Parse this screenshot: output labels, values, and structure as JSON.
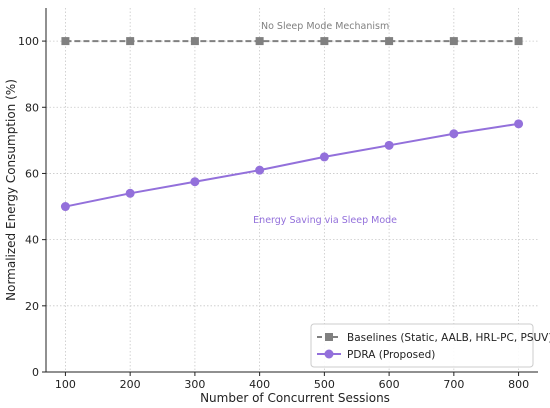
{
  "chart_data": {
    "type": "line",
    "title": "",
    "xlabel": "Number of Concurrent Sessions",
    "ylabel": "Normalized Energy Consumption (%)",
    "x": [
      100,
      200,
      300,
      400,
      500,
      600,
      700,
      800
    ],
    "xlim": [
      70,
      830
    ],
    "ylim": [
      0,
      110
    ],
    "xticks": [
      100,
      200,
      300,
      400,
      500,
      600,
      700,
      800
    ],
    "yticks": [
      0,
      20,
      40,
      60,
      80,
      100
    ],
    "grid": true,
    "legend_position": "bottom-right",
    "series": [
      {
        "name": "Baselines (Static, AALB, HRL-PC, PSUV)",
        "values": [
          100,
          100,
          100,
          100,
          100,
          100,
          100,
          100
        ],
        "color": "#808080",
        "marker": "square",
        "line_style": "dashed"
      },
      {
        "name": "PDRA (Proposed)",
        "values": [
          50,
          54,
          57.5,
          61,
          65,
          68.5,
          72,
          75
        ],
        "color": "#9370DB",
        "marker": "circle",
        "line_style": "solid"
      }
    ],
    "annotations": [
      {
        "text": "No Sleep Mode Mechanism",
        "x": 600,
        "y": 104.5,
        "color": "#808080"
      },
      {
        "text": "Energy Saving via Sleep Mode",
        "x": 600,
        "y": 46,
        "color": "#9370DB"
      }
    ]
  }
}
